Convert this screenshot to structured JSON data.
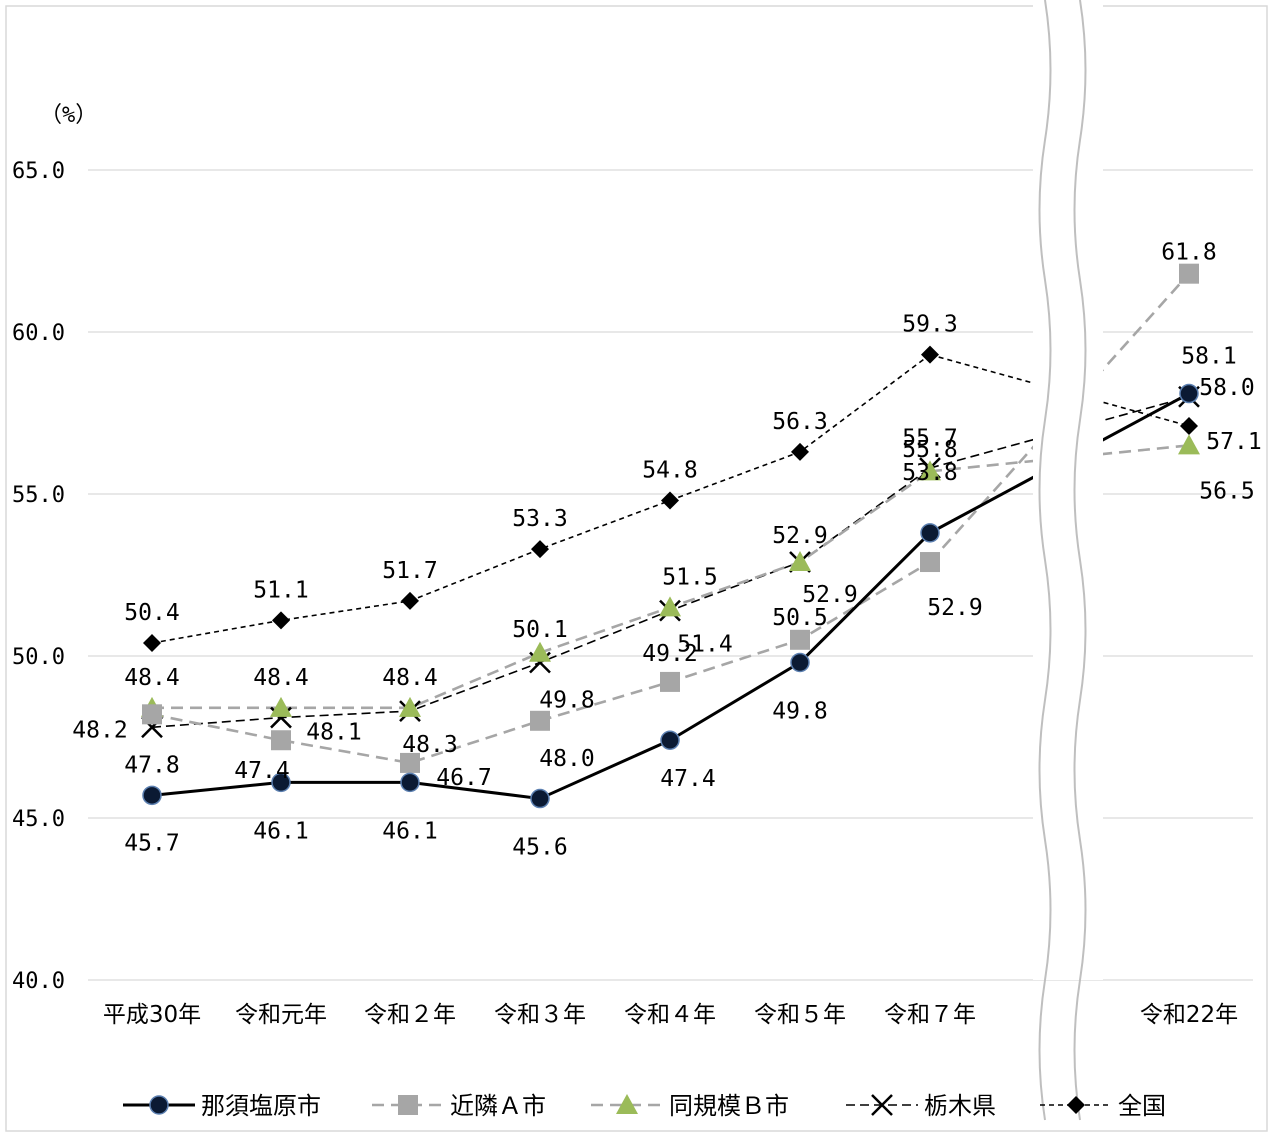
{
  "chart_data": {
    "type": "line",
    "unit_label": "（%）",
    "categories": [
      "平成30年",
      "令和元年",
      "令和２年",
      "令和３年",
      "令和４年",
      "令和５年",
      "令和７年",
      "令和22年"
    ],
    "ylim": [
      40,
      65
    ],
    "yticks": [
      40,
      45,
      50,
      55,
      60,
      65
    ],
    "ytick_labels": [
      "40.0",
      "45.0",
      "50.0",
      "55.0",
      "60.0",
      "65.0"
    ],
    "axis_break": "between 令和７年 and 令和22年",
    "grid": true,
    "legend_position": "bottom",
    "series": [
      {
        "name": "那須塩原市",
        "values": [
          45.7,
          46.1,
          46.1,
          45.6,
          47.4,
          49.8,
          53.8,
          58.1
        ],
        "labels": [
          "45.7",
          "46.1",
          "46.1",
          "45.6",
          "47.4",
          "49.8",
          "53.8",
          "58.1"
        ],
        "color": "#000000",
        "marker": "circle",
        "marker_fill": "#0b1a33",
        "line_style": "solid"
      },
      {
        "name": "近隣Ａ市",
        "values": [
          48.2,
          47.4,
          46.7,
          48.0,
          49.2,
          50.5,
          52.9,
          61.8
        ],
        "labels": [
          "48.2",
          "47.4",
          "46.7",
          "48.0",
          "49.2",
          "50.5",
          "52.9",
          "61.8"
        ],
        "color": "#a6a6a6",
        "marker": "square",
        "marker_fill": "#a6a6a6",
        "line_style": "dashed"
      },
      {
        "name": "同規模Ｂ市",
        "values": [
          48.4,
          48.4,
          48.4,
          50.1,
          51.5,
          52.9,
          55.7,
          56.5
        ],
        "labels": [
          "48.4",
          "48.4",
          "48.4",
          "50.1",
          "51.5",
          "52.9",
          "55.7",
          "56.5"
        ],
        "color": "#a6a6a6",
        "marker": "triangle",
        "marker_fill": "#9bbb59",
        "line_style": "dashed"
      },
      {
        "name": "栃木県",
        "values": [
          47.8,
          48.1,
          48.3,
          49.8,
          51.4,
          52.9,
          55.8,
          58.0
        ],
        "labels": [
          "47.8",
          "48.1",
          "48.3",
          "49.8",
          "51.4",
          "52.9",
          "55.8",
          "58.0"
        ],
        "color": "#000000",
        "marker": "x",
        "marker_fill": "#000000",
        "line_style": "dashed"
      },
      {
        "name": "全国",
        "values": [
          50.4,
          51.1,
          51.7,
          53.3,
          54.8,
          56.3,
          59.3,
          57.1
        ],
        "labels": [
          "50.4",
          "51.1",
          "51.7",
          "53.3",
          "54.8",
          "56.3",
          "59.3",
          "57.1"
        ],
        "color": "#000000",
        "marker": "diamond",
        "marker_fill": "#000000",
        "line_style": "dotted"
      }
    ]
  }
}
